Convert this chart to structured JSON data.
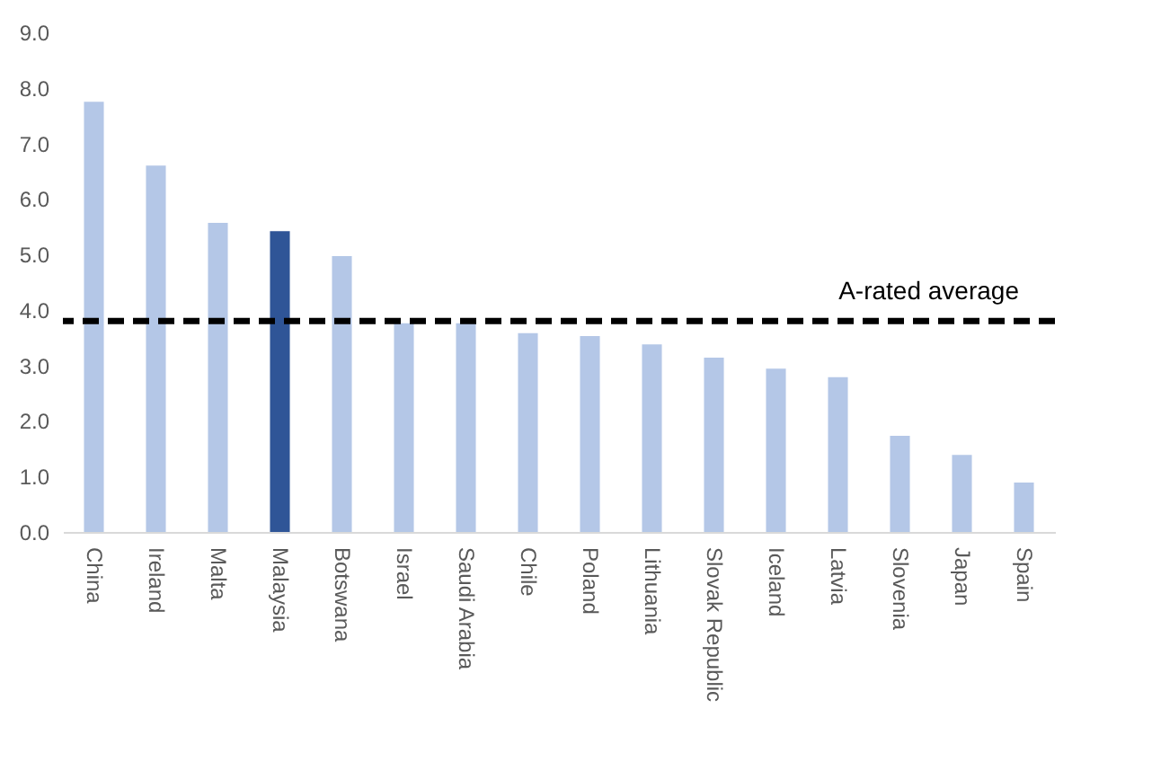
{
  "chart_data": {
    "type": "bar",
    "categories": [
      "China",
      "Ireland",
      "Malta",
      "Malaysia",
      "Botswana",
      "Israel",
      "Saudi Arabia",
      "Chile",
      "Poland",
      "Lithuania",
      "Slovak Republic",
      "Iceland",
      "Latvia",
      "Slovenia",
      "Japan",
      "Spain"
    ],
    "values": [
      7.75,
      6.6,
      5.57,
      5.42,
      4.97,
      3.76,
      3.76,
      3.58,
      3.53,
      3.38,
      3.14,
      2.94,
      2.79,
      1.73,
      1.39,
      0.89
    ],
    "colors": [
      "#b4c7e7",
      "#b4c7e7",
      "#b4c7e7",
      "#2f5597",
      "#b4c7e7",
      "#b4c7e7",
      "#b4c7e7",
      "#b4c7e7",
      "#b4c7e7",
      "#b4c7e7",
      "#b4c7e7",
      "#b4c7e7",
      "#b4c7e7",
      "#b4c7e7",
      "#b4c7e7",
      "#b4c7e7"
    ],
    "ylim": [
      0,
      9
    ],
    "yticks": [
      {
        "value": 0,
        "label": "0.0"
      },
      {
        "value": 1,
        "label": "1.0"
      },
      {
        "value": 2,
        "label": "2.0"
      },
      {
        "value": 3,
        "label": "3.0"
      },
      {
        "value": 4,
        "label": "4.0"
      },
      {
        "value": 5,
        "label": "5.0"
      },
      {
        "value": 6,
        "label": "6.0"
      },
      {
        "value": 7,
        "label": "7.0"
      },
      {
        "value": 8,
        "label": "8.0"
      },
      {
        "value": 9,
        "label": "9.0"
      }
    ],
    "ref_lines": [
      {
        "axis": "y",
        "value": 3.8,
        "label": "A-rated average",
        "color": "#000000",
        "line_style": "dashed"
      }
    ],
    "grid": false
  }
}
